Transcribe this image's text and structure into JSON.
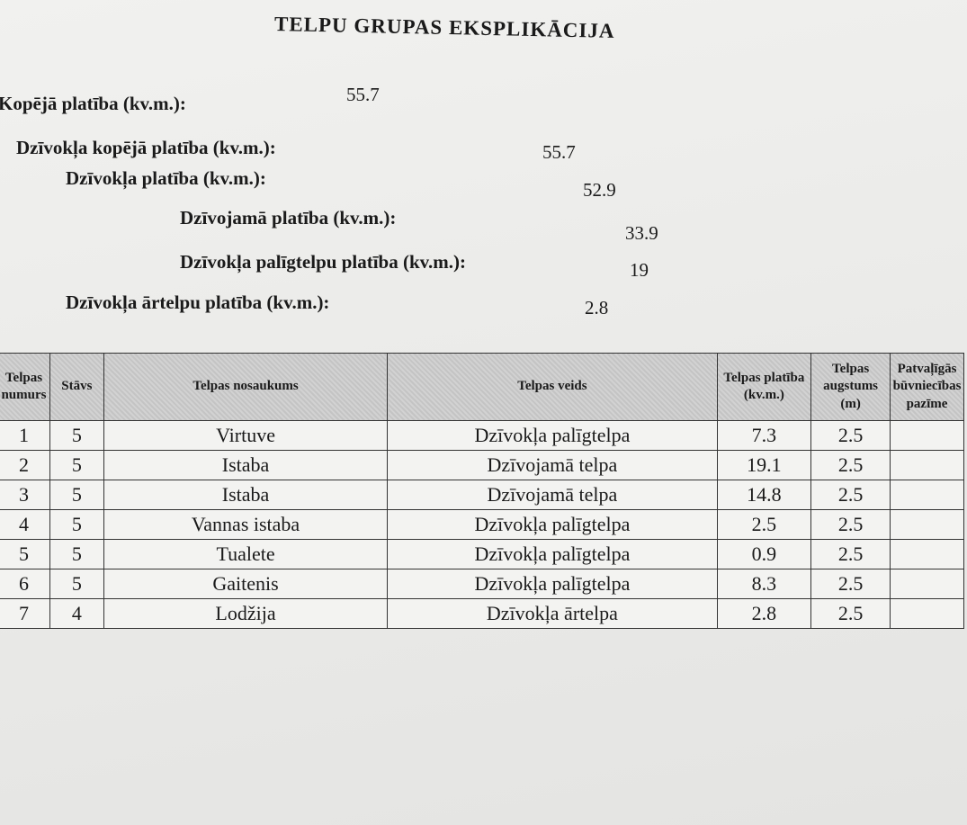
{
  "header": {
    "title": "TELPU GRUPAS EKSPLIKĀCIJA"
  },
  "summary": [
    {
      "label": "Kopējā platība (kv.m.):",
      "value": 55.7
    },
    {
      "label": "Dzīvokļa kopējā platība (kv.m.):",
      "value": 55.7
    },
    {
      "label": "Dzīvokļa platība (kv.m.):",
      "value": 52.9
    },
    {
      "label": "Dzīvojamā platība (kv.m.):",
      "value": 33.9
    },
    {
      "label": "Dzīvokļa palīgtelpu platība (kv.m.):",
      "value": 19
    },
    {
      "label": "Dzīvokļa ārtelpu platība (kv.m.):",
      "value": 2.8
    }
  ],
  "table": {
    "columns": [
      "Telpas numurs",
      "Stāvs",
      "Telpas nosaukums",
      "Telpas veids",
      "Telpas platība (kv.m.)",
      "Telpas augstums (m)",
      "Patvaļīgās būvniecības pazīme"
    ],
    "rows": [
      [
        1,
        5,
        "Virtuve",
        "Dzīvokļa palīgtelpa",
        7.3,
        2.5
      ],
      [
        2,
        5,
        "Istaba",
        "Dzīvojamā telpa",
        19.1,
        2.5
      ],
      [
        3,
        5,
        "Istaba",
        "Dzīvojamā telpa",
        14.8,
        2.5
      ],
      [
        4,
        5,
        "Vannas istaba",
        "Dzīvokļa palīgtelpa",
        2.5,
        2.5
      ],
      [
        5,
        5,
        "Tualete",
        "Dzīvokļa palīgtelpa",
        0.9,
        2.5
      ],
      [
        6,
        5,
        "Gaitenis",
        "Dzīvokļa palīgtelpa",
        8.3,
        2.5
      ],
      [
        7,
        4,
        "Lodžija",
        "Dzīvokļa ārtelpa",
        2.8,
        2.5
      ]
    ]
  }
}
